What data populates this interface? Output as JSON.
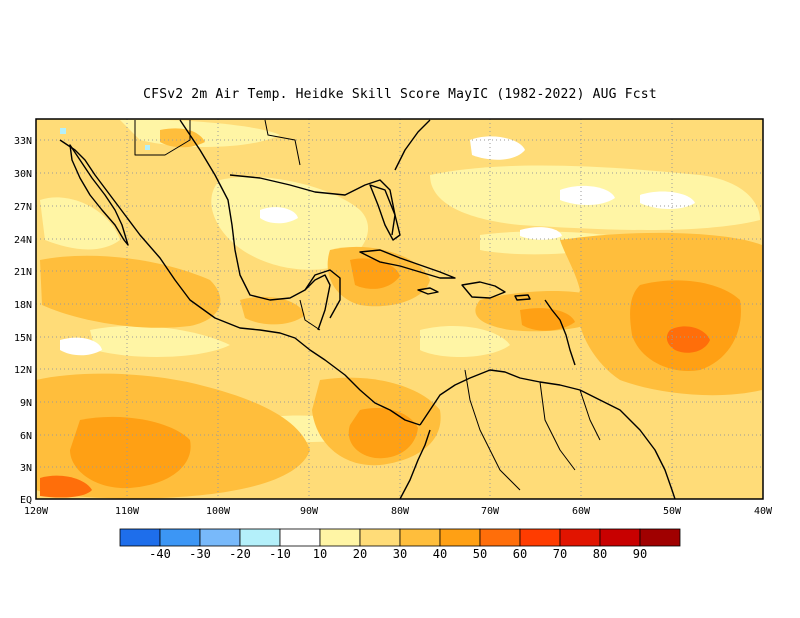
{
  "title": "CFSv2  2m Air Temp. Heidke Skill Score MayIC (1982-2022) AUG Fcst",
  "map": {
    "projection": "lat-lon",
    "lon_range": [
      -120,
      -40
    ],
    "lat_range": [
      0,
      35
    ],
    "grid": "dotted",
    "lat_ticks": [
      "EQ",
      "3N",
      "6N",
      "9N",
      "12N",
      "15N",
      "18N",
      "21N",
      "24N",
      "27N",
      "30N",
      "33N"
    ],
    "lon_ticks": [
      "120W",
      "110W",
      "100W",
      "90W",
      "80W",
      "70W",
      "60W",
      "50W",
      "40W"
    ]
  },
  "colorbar": {
    "bins": [
      {
        "color": "#1e6eeb",
        "label": "-40"
      },
      {
        "color": "#3c96f5",
        "label": "-30"
      },
      {
        "color": "#78b9fa",
        "label": "-20"
      },
      {
        "color": "#b4f0fa",
        "label": "-10"
      },
      {
        "color": "#ffffff",
        "label": "10"
      },
      {
        "color": "#fff5a5",
        "label": "20"
      },
      {
        "color": "#ffdc78",
        "label": "30"
      },
      {
        "color": "#ffbe3c",
        "label": "40"
      },
      {
        "color": "#ffa014",
        "label": "50"
      },
      {
        "color": "#ff6e0a",
        "label": "60"
      },
      {
        "color": "#ff3c00",
        "label": "70"
      },
      {
        "color": "#e11400",
        "label": "80"
      },
      {
        "color": "#c80000",
        "label": "90"
      },
      {
        "color": "#a00000",
        "label": ""
      }
    ]
  }
}
